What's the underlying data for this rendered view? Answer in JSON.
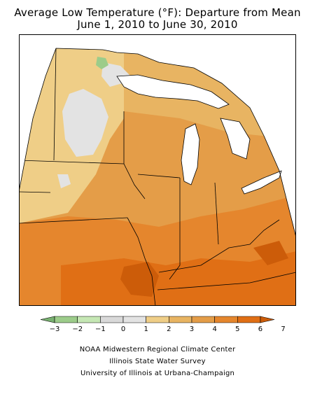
{
  "header": {
    "title": "Average Low Temperature (°F): Departure from Mean",
    "subtitle": "June 1, 2010 to June 30, 2010"
  },
  "legend": {
    "bins": [
      {
        "from": -4,
        "to": -3,
        "color": "#78b070"
      },
      {
        "from": -3,
        "to": -2,
        "color": "#9ccc8a"
      },
      {
        "from": -2,
        "to": -1,
        "color": "#c5e7b4"
      },
      {
        "from": -1,
        "to": 0,
        "color": "#d9d9d9"
      },
      {
        "from": 0,
        "to": 1,
        "color": "#e3e3e3"
      },
      {
        "from": 1,
        "to": 2,
        "color": "#efce87"
      },
      {
        "from": 2,
        "to": 3,
        "color": "#e8b462"
      },
      {
        "from": 3,
        "to": 4,
        "color": "#e49d48"
      },
      {
        "from": 4,
        "to": 5,
        "color": "#e5862d"
      },
      {
        "from": 5,
        "to": 6,
        "color": "#e06f15"
      },
      {
        "from": 6,
        "to": 7,
        "color": "#cc5c09"
      }
    ],
    "tick_labels": [
      "−3",
      "−2",
      "−1",
      "0",
      "1",
      "2",
      "3",
      "4",
      "5",
      "6",
      "7"
    ]
  },
  "credits": {
    "line1": "NOAA Midwestern Regional Climate Center",
    "line2": "Illinois State Water Survey",
    "line3": "University of Illinois at Urbana-Champaign"
  },
  "colors": {
    "lake": "#ffffff",
    "border": "#000000",
    "state_line": "#000000"
  }
}
